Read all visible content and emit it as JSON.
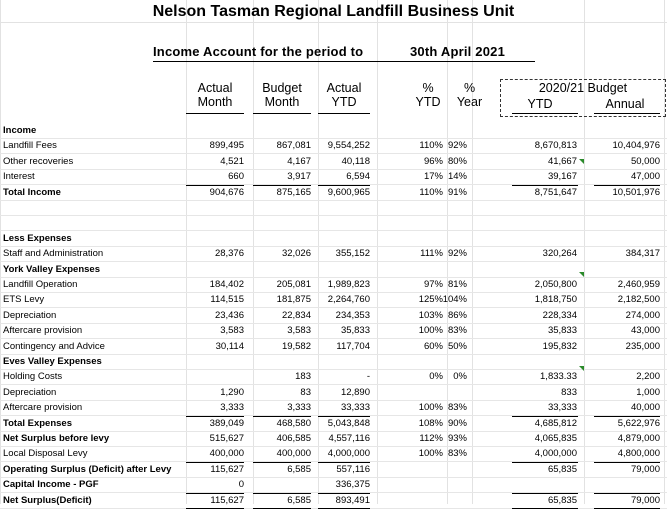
{
  "title": "Nelson Tasman Regional Landfill Business Unit",
  "subtitle_left": "Income Account for the period to",
  "subtitle_right": "30th April 2021",
  "headers": {
    "actual_month": [
      "Actual",
      "Month"
    ],
    "budget_month": [
      "Budget",
      "Month"
    ],
    "actual_ytd": [
      "Actual",
      "YTD"
    ],
    "pct_ytd": [
      "%",
      "YTD"
    ],
    "pct_year": [
      "%",
      "Year"
    ],
    "budget_group": "2020/21 Budget",
    "budget_ytd": "YTD",
    "budget_annual": "Annual"
  },
  "rows": [
    {
      "label": "Income",
      "bold": true,
      "v": [
        "",
        "",
        "",
        "",
        "",
        "",
        ""
      ]
    },
    {
      "label": "Landfill Fees",
      "v": [
        "899,495",
        "867,081",
        "9,554,252",
        "110%",
        "92%",
        "8,670,813",
        "10,404,976"
      ]
    },
    {
      "label": "Other recoveries",
      "v": [
        "4,521",
        "4,167",
        "40,118",
        "96%",
        "80%",
        "41,667",
        "50,000"
      ]
    },
    {
      "label": "Interest",
      "v": [
        "660",
        "3,917",
        "6,594",
        "17%",
        "14%",
        "39,167",
        "47,000"
      ]
    },
    {
      "label": "Total Income",
      "bold": true,
      "v": [
        "904,676",
        "875,165",
        "9,600,965",
        "110%",
        "91%",
        "8,751,647",
        "10,501,976"
      ]
    },
    {
      "label": "",
      "v": [
        "",
        "",
        "",
        "",
        "",
        "",
        ""
      ]
    },
    {
      "label": "",
      "v": [
        "",
        "",
        "",
        "",
        "",
        "",
        ""
      ]
    },
    {
      "label": "Less Expenses",
      "bold": true,
      "v": [
        "",
        "",
        "",
        "",
        "",
        "",
        ""
      ]
    },
    {
      "label": "Staff and Administration",
      "v": [
        "28,376",
        "32,026",
        "355,152",
        "111%",
        "92%",
        "320,264",
        "384,317"
      ]
    },
    {
      "label": "York Valley Expenses",
      "bold": true,
      "v": [
        "",
        "",
        "",
        "",
        "",
        "",
        ""
      ]
    },
    {
      "label": "Landfill Operation",
      "v": [
        "184,402",
        "205,081",
        "1,989,823",
        "97%",
        "81%",
        "2,050,800",
        "2,460,959"
      ]
    },
    {
      "label": "ETS Levy",
      "v": [
        "114,515",
        "181,875",
        "2,264,760",
        "125%",
        "104%",
        "1,818,750",
        "2,182,500"
      ]
    },
    {
      "label": "Depreciation",
      "v": [
        "23,436",
        "22,834",
        "234,353",
        "103%",
        "86%",
        "228,334",
        "274,000"
      ]
    },
    {
      "label": "Aftercare provision",
      "v": [
        "3,583",
        "3,583",
        "35,833",
        "100%",
        "83%",
        "35,833",
        "43,000"
      ]
    },
    {
      "label": "Contingency and Advice",
      "v": [
        "30,114",
        "19,582",
        "117,704",
        "60%",
        "50%",
        "195,832",
        "235,000"
      ]
    },
    {
      "label": "Eves Valley Expenses",
      "bold": true,
      "v": [
        "",
        "",
        "",
        "",
        "",
        "",
        ""
      ]
    },
    {
      "label": "Holding Costs",
      "v": [
        "",
        "183",
        "-",
        "0%",
        "0%",
        "1,833.33",
        "2,200"
      ]
    },
    {
      "label": "Depreciation",
      "v": [
        "1,290",
        "83",
        "12,890",
        "",
        "",
        "833",
        "1,000"
      ]
    },
    {
      "label": "Aftercare provision",
      "v": [
        "3,333",
        "3,333",
        "33,333",
        "100%",
        "83%",
        "33,333",
        "40,000"
      ]
    },
    {
      "label": "Total Expenses",
      "bold": true,
      "v": [
        "389,049",
        "468,580",
        "5,043,848",
        "108%",
        "90%",
        "4,685,812",
        "5,622,976"
      ]
    },
    {
      "label": "Net Surplus before levy",
      "bold": true,
      "v": [
        "515,627",
        "406,585",
        "4,557,116",
        "112%",
        "93%",
        "4,065,835",
        "4,879,000"
      ]
    },
    {
      "label": "Local Disposal Levy",
      "v": [
        "400,000",
        "400,000",
        "4,000,000",
        "100%",
        "83%",
        "4,000,000",
        "4,800,000"
      ]
    },
    {
      "label": "Operating Surplus (Deficit) after Levy",
      "bold": true,
      "v": [
        "115,627",
        "6,585",
        "557,116",
        "",
        "",
        "65,835",
        "79,000"
      ]
    },
    {
      "label": "Capital Income - PGF",
      "bold": true,
      "v": [
        "0",
        "",
        "336,375",
        "",
        "",
        "",
        ""
      ]
    },
    {
      "label": "Net Surplus(Deficit)",
      "bold": true,
      "v": [
        "115,627",
        "6,585",
        "893,491",
        "",
        "",
        "65,835",
        "79,000"
      ]
    }
  ]
}
